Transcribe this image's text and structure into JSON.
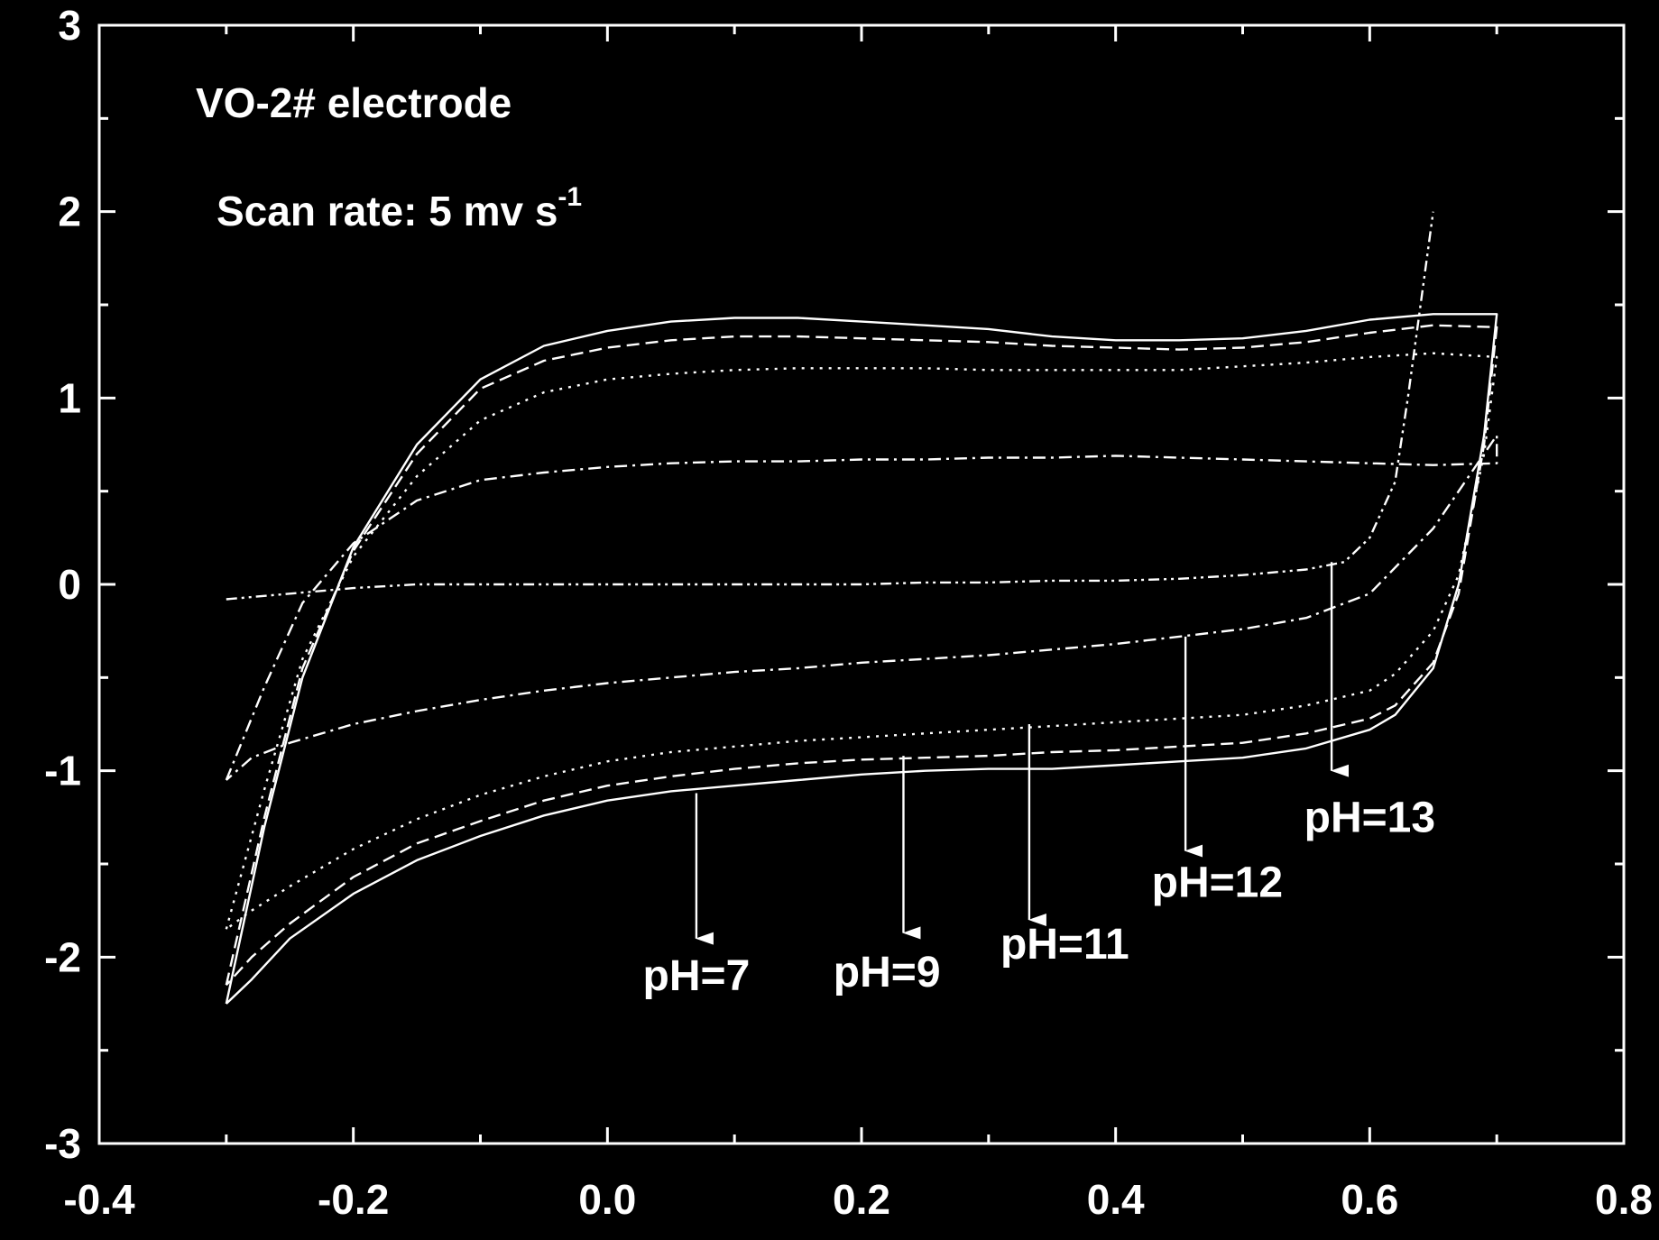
{
  "chart_data": {
    "type": "line",
    "title": "VO-2# electrode",
    "annotations": {
      "scan_rate_label": "Scan rate: 5 mv s",
      "scan_rate_exponent": "-1"
    },
    "xlabel": "",
    "ylabel": "",
    "xlim": [
      -0.4,
      0.8
    ],
    "ylim": [
      -3,
      3
    ],
    "x_ticks": [
      -0.4,
      -0.2,
      0.0,
      0.2,
      0.4,
      0.6,
      0.8
    ],
    "x_tick_labels": [
      "-0.4",
      "-0.2",
      "0.0",
      "0.2",
      "0.4",
      "0.6",
      "0.8"
    ],
    "y_ticks": [
      -3,
      -2,
      -1,
      0,
      1,
      2,
      3
    ],
    "y_tick_labels": [
      "-3",
      "-2",
      "-1",
      "0",
      "1",
      "2",
      "3"
    ],
    "grid": false,
    "colors": {
      "background": "#000000",
      "foreground": "#ffffff"
    },
    "series": [
      {
        "name": "pH=7",
        "style": "solid",
        "upper_x": [
          -0.3,
          -0.27,
          -0.24,
          -0.2,
          -0.15,
          -0.1,
          -0.05,
          0.0,
          0.05,
          0.1,
          0.15,
          0.2,
          0.25,
          0.3,
          0.35,
          0.4,
          0.45,
          0.5,
          0.55,
          0.6,
          0.65,
          0.7
        ],
        "upper_y": [
          -2.25,
          -1.3,
          -0.5,
          0.2,
          0.75,
          1.1,
          1.28,
          1.36,
          1.41,
          1.43,
          1.43,
          1.41,
          1.39,
          1.37,
          1.33,
          1.31,
          1.31,
          1.32,
          1.36,
          1.42,
          1.45,
          1.45
        ],
        "lower_x": [
          0.7,
          0.69,
          0.67,
          0.65,
          0.62,
          0.6,
          0.55,
          0.5,
          0.45,
          0.4,
          0.35,
          0.3,
          0.25,
          0.2,
          0.15,
          0.1,
          0.05,
          0.0,
          -0.05,
          -0.1,
          -0.15,
          -0.2,
          -0.25,
          -0.28,
          -0.3
        ],
        "lower_y": [
          1.45,
          0.8,
          0.0,
          -0.45,
          -0.7,
          -0.78,
          -0.88,
          -0.93,
          -0.95,
          -0.97,
          -0.99,
          -0.99,
          -1.0,
          -1.02,
          -1.05,
          -1.08,
          -1.11,
          -1.16,
          -1.24,
          -1.35,
          -1.48,
          -1.66,
          -1.9,
          -2.12,
          -2.25
        ]
      },
      {
        "name": "pH=9",
        "style": "dashed",
        "upper_x": [
          -0.3,
          -0.27,
          -0.24,
          -0.2,
          -0.15,
          -0.1,
          -0.05,
          0.0,
          0.05,
          0.1,
          0.15,
          0.2,
          0.25,
          0.3,
          0.35,
          0.4,
          0.45,
          0.5,
          0.55,
          0.6,
          0.65,
          0.7
        ],
        "upper_y": [
          -2.15,
          -1.25,
          -0.45,
          0.18,
          0.7,
          1.05,
          1.2,
          1.27,
          1.31,
          1.33,
          1.33,
          1.32,
          1.31,
          1.3,
          1.28,
          1.27,
          1.26,
          1.27,
          1.3,
          1.35,
          1.39,
          1.38
        ],
        "lower_x": [
          0.7,
          0.69,
          0.67,
          0.65,
          0.62,
          0.6,
          0.55,
          0.5,
          0.45,
          0.4,
          0.35,
          0.3,
          0.25,
          0.2,
          0.15,
          0.1,
          0.05,
          0.0,
          -0.05,
          -0.1,
          -0.15,
          -0.2,
          -0.25,
          -0.28,
          -0.3
        ],
        "lower_y": [
          1.38,
          0.75,
          -0.05,
          -0.42,
          -0.65,
          -0.72,
          -0.8,
          -0.85,
          -0.87,
          -0.89,
          -0.9,
          -0.92,
          -0.93,
          -0.94,
          -0.96,
          -0.99,
          -1.03,
          -1.08,
          -1.16,
          -1.27,
          -1.39,
          -1.57,
          -1.82,
          -2.0,
          -2.15
        ]
      },
      {
        "name": "pH=11",
        "style": "dotted",
        "upper_x": [
          -0.3,
          -0.27,
          -0.24,
          -0.2,
          -0.15,
          -0.1,
          -0.05,
          0.0,
          0.05,
          0.1,
          0.15,
          0.2,
          0.25,
          0.3,
          0.35,
          0.4,
          0.45,
          0.5,
          0.55,
          0.6,
          0.65,
          0.7
        ],
        "upper_y": [
          -1.85,
          -1.1,
          -0.4,
          0.15,
          0.58,
          0.88,
          1.03,
          1.1,
          1.13,
          1.15,
          1.16,
          1.16,
          1.16,
          1.15,
          1.15,
          1.15,
          1.15,
          1.17,
          1.19,
          1.22,
          1.24,
          1.22
        ],
        "lower_x": [
          0.7,
          0.69,
          0.67,
          0.65,
          0.62,
          0.6,
          0.55,
          0.5,
          0.45,
          0.4,
          0.35,
          0.3,
          0.25,
          0.2,
          0.15,
          0.1,
          0.05,
          0.0,
          -0.05,
          -0.1,
          -0.15,
          -0.2,
          -0.25,
          -0.28,
          -0.3
        ],
        "lower_y": [
          1.22,
          0.7,
          0.05,
          -0.25,
          -0.48,
          -0.57,
          -0.65,
          -0.7,
          -0.72,
          -0.74,
          -0.76,
          -0.78,
          -0.8,
          -0.82,
          -0.84,
          -0.87,
          -0.9,
          -0.95,
          -1.03,
          -1.13,
          -1.26,
          -1.42,
          -1.62,
          -1.75,
          -1.85
        ]
      },
      {
        "name": "pH=12",
        "style": "dash-dot",
        "upper_x": [
          -0.3,
          -0.27,
          -0.24,
          -0.2,
          -0.15,
          -0.1,
          -0.05,
          0.0,
          0.05,
          0.1,
          0.15,
          0.2,
          0.25,
          0.3,
          0.35,
          0.4,
          0.45,
          0.5,
          0.55,
          0.6,
          0.65,
          0.7
        ],
        "upper_y": [
          -1.05,
          -0.55,
          -0.1,
          0.22,
          0.45,
          0.56,
          0.6,
          0.63,
          0.65,
          0.66,
          0.66,
          0.67,
          0.67,
          0.68,
          0.68,
          0.69,
          0.68,
          0.67,
          0.66,
          0.65,
          0.64,
          0.65
        ],
        "lower_x": [
          0.7,
          0.68,
          0.65,
          0.6,
          0.55,
          0.5,
          0.45,
          0.4,
          0.35,
          0.3,
          0.25,
          0.2,
          0.15,
          0.1,
          0.05,
          0.0,
          -0.05,
          -0.1,
          -0.15,
          -0.2,
          -0.25,
          -0.28,
          -0.3
        ],
        "lower_y": [
          0.8,
          0.6,
          0.3,
          -0.05,
          -0.18,
          -0.24,
          -0.28,
          -0.32,
          -0.35,
          -0.38,
          -0.4,
          -0.42,
          -0.45,
          -0.47,
          -0.5,
          -0.53,
          -0.57,
          -0.62,
          -0.68,
          -0.75,
          -0.85,
          -0.93,
          -1.05
        ]
      },
      {
        "name": "pH=13",
        "style": "dash-dot-dot",
        "upper_x": [
          -0.3,
          -0.25,
          -0.2,
          -0.15,
          -0.1,
          -0.05,
          0.0,
          0.05,
          0.1,
          0.15,
          0.2,
          0.25,
          0.3,
          0.35,
          0.4,
          0.45,
          0.5,
          0.55,
          0.58,
          0.6,
          0.62,
          0.63,
          0.64,
          0.65
        ],
        "upper_y": [
          -0.08,
          -0.05,
          -0.02,
          0.0,
          0.0,
          0.0,
          0.0,
          0.0,
          0.0,
          0.0,
          0.0,
          0.01,
          0.01,
          0.02,
          0.02,
          0.03,
          0.05,
          0.08,
          0.12,
          0.25,
          0.55,
          1.0,
          1.5,
          2.0
        ],
        "lower_x": [],
        "lower_y": []
      }
    ],
    "arrow_labels": [
      {
        "text": "pH=7",
        "x": 0.07,
        "y_start": -1.12,
        "y_end": -1.9,
        "label_x": 0.07,
        "label_y": -2.1
      },
      {
        "text": "pH=9",
        "x": 0.233,
        "y_start": -0.92,
        "y_end": -1.87,
        "label_x": 0.22,
        "label_y": -2.08
      },
      {
        "text": "pH=11",
        "x": 0.332,
        "y_start": -0.75,
        "y_end": -1.8,
        "label_x": 0.36,
        "label_y": -1.93
      },
      {
        "text": "pH=12",
        "x": 0.455,
        "y_start": -0.28,
        "y_end": -1.43,
        "label_x": 0.48,
        "label_y": -1.6
      },
      {
        "text": "pH=13",
        "x": 0.57,
        "y_start": 0.12,
        "y_end": -1.0,
        "label_x": 0.6,
        "label_y": -1.25
      }
    ]
  }
}
